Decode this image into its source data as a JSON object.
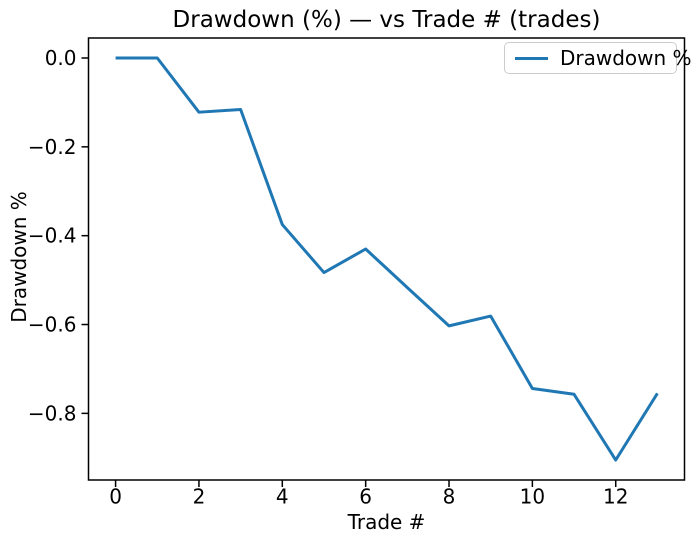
{
  "chart_data": {
    "type": "line",
    "title": "Drawdown (%) — vs Trade # (trades)",
    "xlabel": "Trade #",
    "ylabel": "Drawdown %",
    "x": [
      0,
      1,
      2,
      3,
      4,
      5,
      6,
      7,
      8,
      9,
      10,
      11,
      12,
      13
    ],
    "series": [
      {
        "name": "Drawdown %",
        "color": "#1f77b4",
        "values": [
          0.0,
          0.0,
          -0.122,
          -0.116,
          -0.375,
          -0.483,
          -0.43,
          -0.517,
          -0.603,
          -0.581,
          -0.744,
          -0.757,
          -0.905,
          -0.755
        ]
      }
    ],
    "xticks": [
      0,
      2,
      4,
      6,
      8,
      10,
      12
    ],
    "x_tick_labels": [
      "0",
      "2",
      "4",
      "6",
      "8",
      "10",
      "12"
    ],
    "yticks": [
      0.0,
      -0.2,
      -0.4,
      -0.6,
      -0.8
    ],
    "y_tick_labels": [
      "0.0",
      "−0.2",
      "−0.4",
      "−0.6",
      "−0.8"
    ],
    "xlim": [
      -0.65,
      13.65
    ],
    "ylim": [
      -0.95,
      0.045
    ],
    "grid": false,
    "legend": {
      "position": "upper right",
      "label": "Drawdown %"
    }
  },
  "colors": {
    "line": "#1f77b4",
    "spine": "#000000",
    "text": "#000000",
    "legend_border": "#cccccc",
    "background": "#ffffff"
  }
}
